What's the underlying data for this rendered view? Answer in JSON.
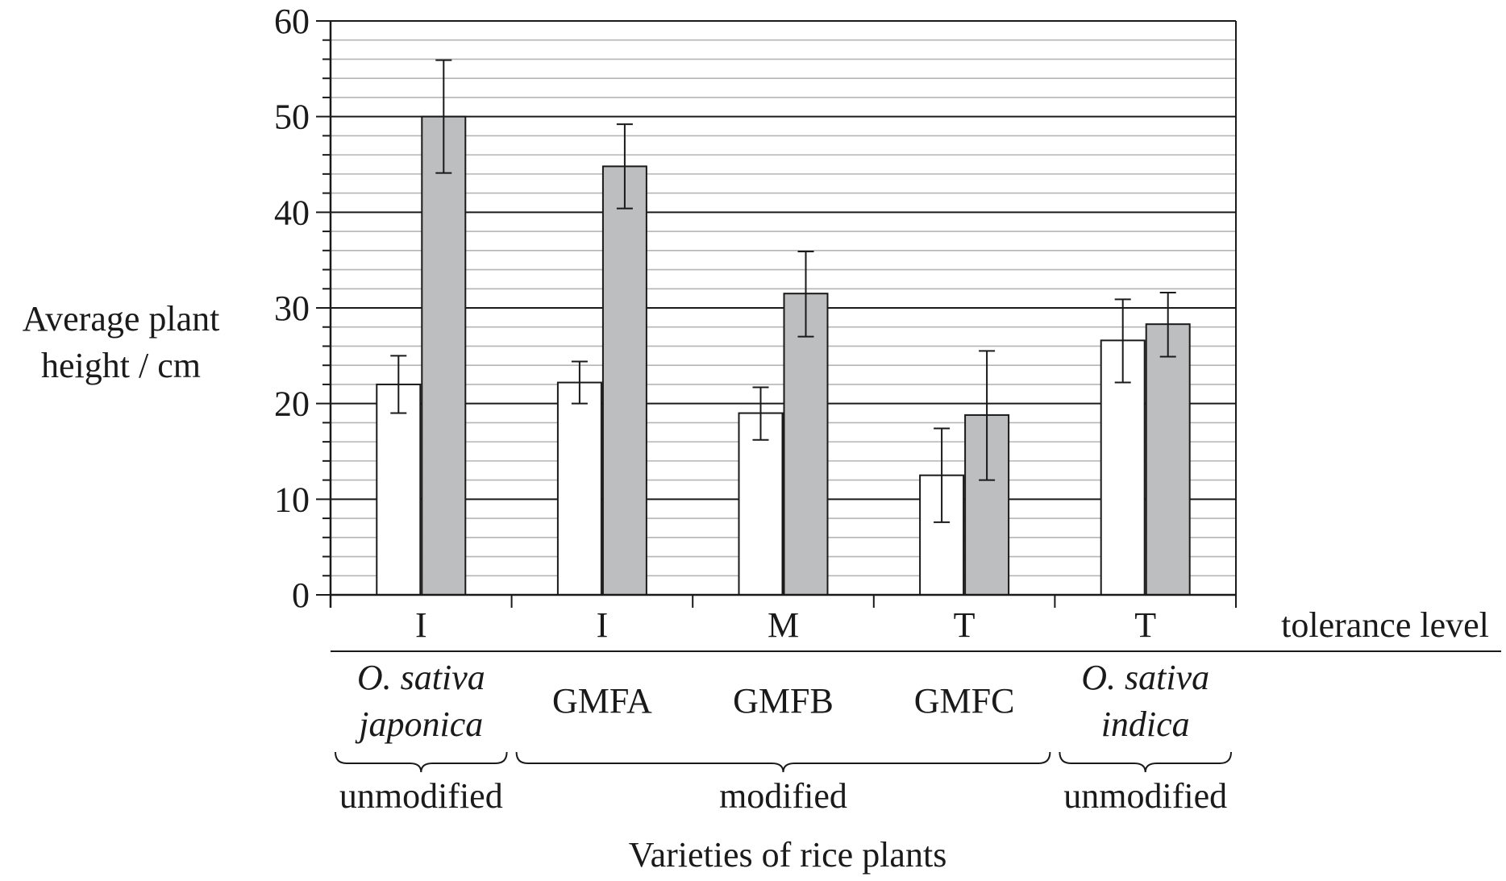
{
  "chart_data": {
    "type": "bar",
    "xlabel": "Varieties of rice plants",
    "ylabel": [
      "Average plant",
      "height / cm"
    ],
    "ylim": [
      0,
      60
    ],
    "y_major_ticks": [
      0,
      10,
      20,
      30,
      40,
      50,
      60
    ],
    "y_minor_step": 2,
    "grid": true,
    "tolerance_row_label": "tolerance level",
    "categories": [
      {
        "tolerance": "I",
        "variety": [
          "O. sativa",
          "japonica"
        ],
        "italic": true
      },
      {
        "tolerance": "I",
        "variety": [
          "GMFA"
        ],
        "italic": false
      },
      {
        "tolerance": "M",
        "variety": [
          "GMFB"
        ],
        "italic": false
      },
      {
        "tolerance": "T",
        "variety": [
          "GMFC"
        ],
        "italic": false
      },
      {
        "tolerance": "T",
        "variety": [
          "O. sativa",
          "indica"
        ],
        "italic": true
      }
    ],
    "groups": [
      {
        "label": "unmodified",
        "from": 0,
        "to": 0
      },
      {
        "label": "modified",
        "from": 1,
        "to": 3
      },
      {
        "label": "unmodified",
        "from": 4,
        "to": 4
      }
    ],
    "series": [
      {
        "values": [
          22,
          22.2,
          19,
          12.5,
          26.6
        ],
        "error_low": [
          19,
          20,
          16.2,
          7.6,
          22.2
        ],
        "error_high": [
          25,
          24.4,
          21.7,
          17.4,
          30.9
        ],
        "color": "#ffffff"
      },
      {
        "values": [
          50,
          44.8,
          31.5,
          18.8,
          28.3
        ],
        "error_low": [
          44.1,
          40.4,
          27,
          12,
          24.9
        ],
        "error_high": [
          55.9,
          49.2,
          35.9,
          25.5,
          31.6
        ],
        "color": "#bdbebf"
      }
    ],
    "colors": {
      "major_grid": "#1a1a1a",
      "minor_grid": "#b5b5b5",
      "axis": "#1a1a1a"
    }
  }
}
